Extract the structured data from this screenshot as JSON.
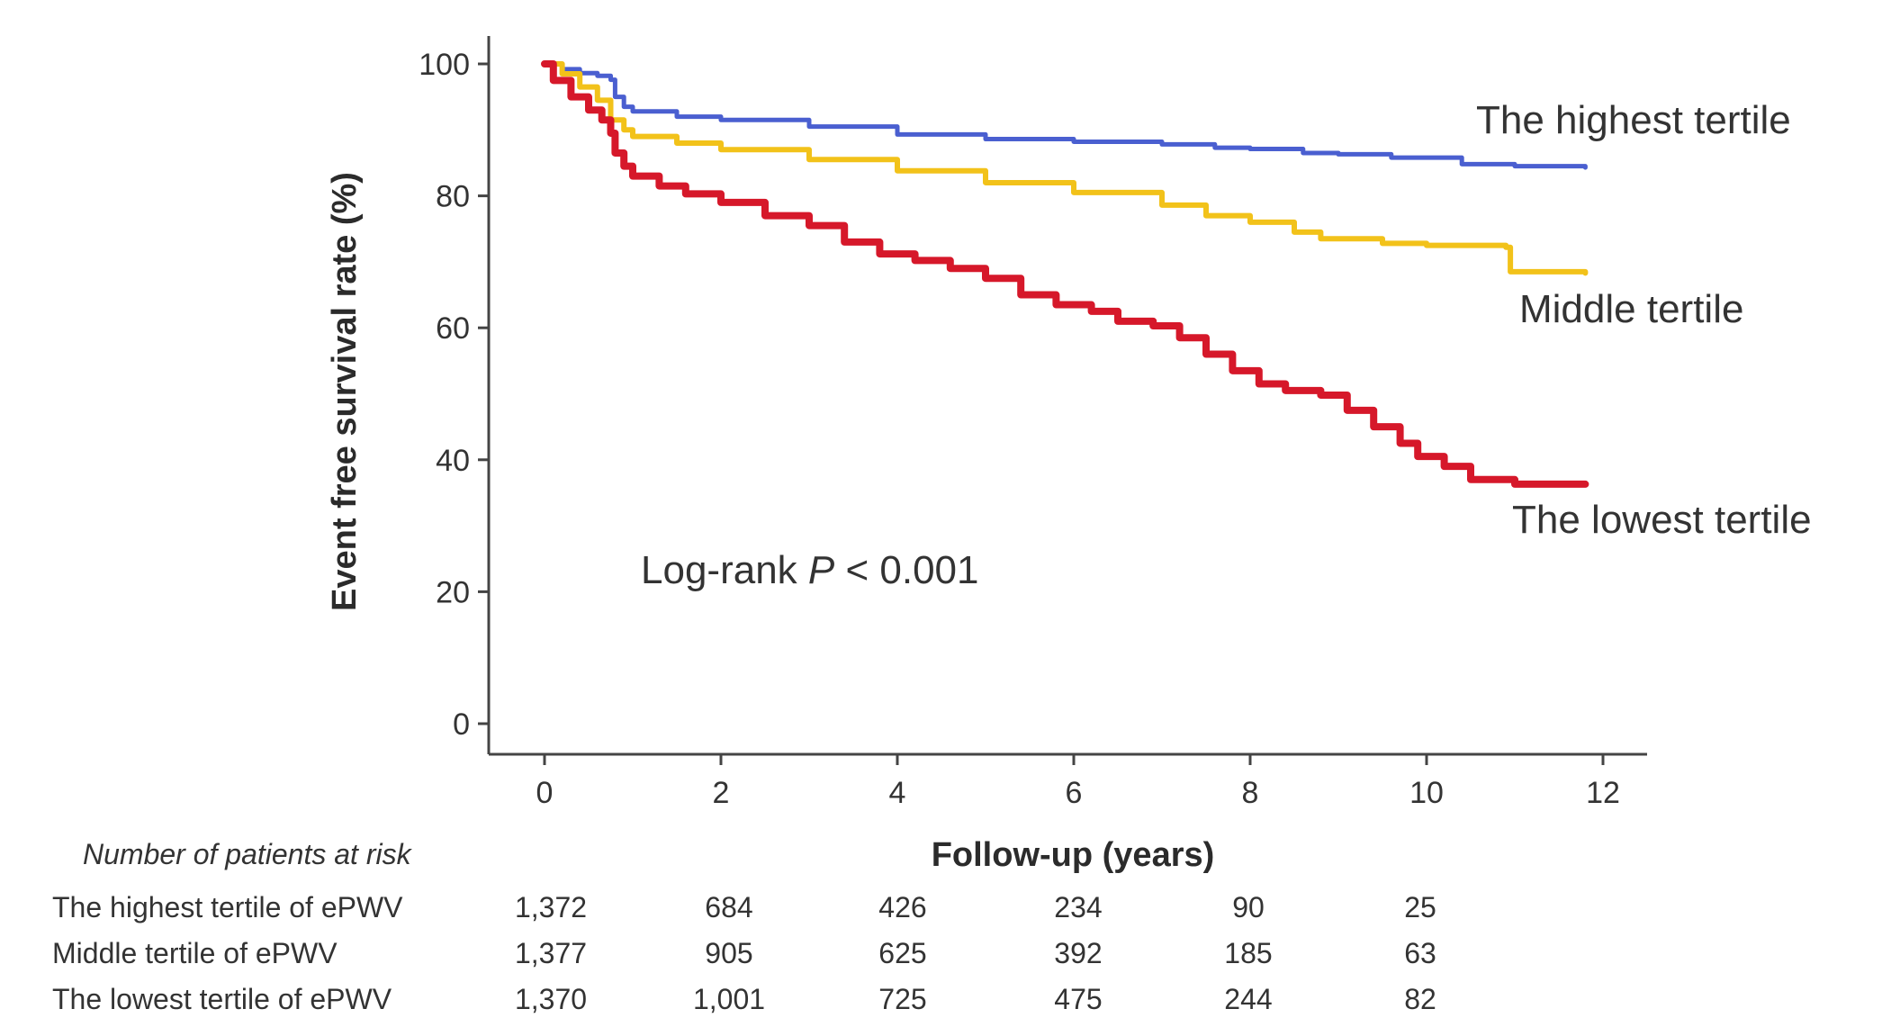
{
  "chart_data": {
    "type": "line",
    "title": "",
    "xlabel": "Follow-up (years)",
    "ylabel": "Event free survival rate (%)",
    "xlim": [
      0,
      12
    ],
    "ylim": [
      0,
      100
    ],
    "x_ticks": [
      "0",
      "2",
      "4",
      "6",
      "8",
      "10",
      "12"
    ],
    "y_ticks": [
      "0",
      "20",
      "40",
      "60",
      "80",
      "100"
    ],
    "grid": false,
    "annotation": {
      "prefix": "Log-rank ",
      "italic": "P",
      "suffix": " < 0.001"
    },
    "series": [
      {
        "label": "The highest tertile",
        "color": "#4a5fd0",
        "points": [
          [
            0,
            100
          ],
          [
            0.2,
            99.2
          ],
          [
            0.4,
            98.6
          ],
          [
            0.6,
            98.2
          ],
          [
            0.75,
            97.6
          ],
          [
            0.8,
            95
          ],
          [
            0.9,
            93.5
          ],
          [
            1.0,
            92.8
          ],
          [
            1.5,
            92
          ],
          [
            2,
            91.5
          ],
          [
            3,
            90.5
          ],
          [
            4,
            89.3
          ],
          [
            5,
            88.6
          ],
          [
            6,
            88.2
          ],
          [
            7,
            87.8
          ],
          [
            7.6,
            87.3
          ],
          [
            8,
            87.1
          ],
          [
            8.6,
            86.5
          ],
          [
            9,
            86.3
          ],
          [
            9.6,
            85.8
          ],
          [
            10.4,
            84.8
          ],
          [
            11,
            84.5
          ],
          [
            11.8,
            84.3
          ]
        ]
      },
      {
        "label": "Middle tertile",
        "color": "#f2c21a",
        "points": [
          [
            0,
            100
          ],
          [
            0.2,
            98.5
          ],
          [
            0.4,
            96.5
          ],
          [
            0.6,
            94.5
          ],
          [
            0.75,
            91.5
          ],
          [
            0.9,
            90
          ],
          [
            1.0,
            89
          ],
          [
            1.5,
            88
          ],
          [
            2,
            87
          ],
          [
            3,
            85.5
          ],
          [
            4,
            83.8
          ],
          [
            5,
            82
          ],
          [
            6,
            80.5
          ],
          [
            7,
            78.6
          ],
          [
            7.5,
            77
          ],
          [
            8,
            76
          ],
          [
            8.5,
            74.5
          ],
          [
            8.8,
            73.5
          ],
          [
            9.5,
            72.8
          ],
          [
            10,
            72.5
          ],
          [
            10.9,
            72.2
          ],
          [
            10.95,
            68.5
          ],
          [
            11.8,
            68.3
          ]
        ]
      },
      {
        "label": "The lowest tertile",
        "color": "#d6182a",
        "points": [
          [
            0,
            100
          ],
          [
            0.1,
            97.5
          ],
          [
            0.3,
            95
          ],
          [
            0.5,
            93
          ],
          [
            0.65,
            91.5
          ],
          [
            0.75,
            89.5
          ],
          [
            0.8,
            86.5
          ],
          [
            0.9,
            84.5
          ],
          [
            1.0,
            83
          ],
          [
            1.3,
            81.5
          ],
          [
            1.6,
            80.3
          ],
          [
            2,
            79
          ],
          [
            2.5,
            77
          ],
          [
            3,
            75.5
          ],
          [
            3.4,
            73
          ],
          [
            3.8,
            71.2
          ],
          [
            4.2,
            70.2
          ],
          [
            4.6,
            69
          ],
          [
            5,
            67.5
          ],
          [
            5.4,
            65
          ],
          [
            5.8,
            63.5
          ],
          [
            6.2,
            62.5
          ],
          [
            6.5,
            61
          ],
          [
            6.9,
            60.3
          ],
          [
            7.2,
            58.5
          ],
          [
            7.5,
            56
          ],
          [
            7.8,
            53.5
          ],
          [
            8.1,
            51.5
          ],
          [
            8.4,
            50.5
          ],
          [
            8.8,
            49.8
          ],
          [
            9.1,
            47.5
          ],
          [
            9.4,
            45
          ],
          [
            9.7,
            42.5
          ],
          [
            9.9,
            40.5
          ],
          [
            10.2,
            39
          ],
          [
            10.5,
            37
          ],
          [
            11,
            36.3
          ],
          [
            11.8,
            36.3
          ]
        ]
      }
    ]
  },
  "risk_table": {
    "title": "Number of patients at risk",
    "rows": [
      {
        "label": "The highest tertile of ePWV",
        "values": [
          "1,372",
          "684",
          "426",
          "234",
          "90",
          "25"
        ]
      },
      {
        "label": "Middle tertile of ePWV",
        "values": [
          "1,377",
          "905",
          "625",
          "392",
          "185",
          "63"
        ]
      },
      {
        "label": "The lowest tertile of ePWV",
        "values": [
          "1,370",
          "1,001",
          "725",
          "475",
          "244",
          "82"
        ]
      }
    ]
  }
}
